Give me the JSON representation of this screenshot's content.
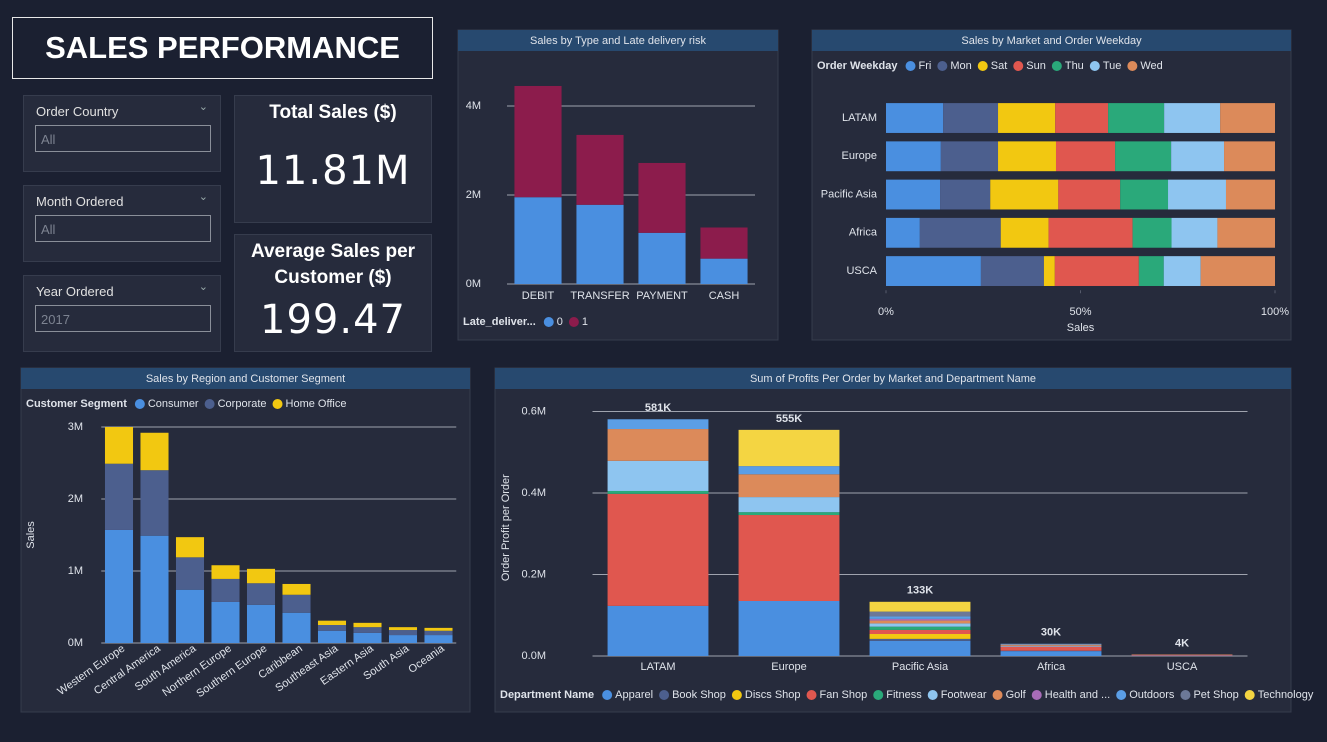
{
  "header": {
    "title": "SALES PERFORMANCE"
  },
  "filters": [
    {
      "label": "Order Country",
      "value": "All"
    },
    {
      "label": "Month Ordered",
      "value": "All"
    },
    {
      "label": "Year Ordered",
      "value": "2017"
    }
  ],
  "cards": [
    {
      "label": "Total Sales ($)",
      "value": "11.81M"
    },
    {
      "label": "Average Sales per Customer ($)",
      "value": "199.47"
    }
  ],
  "chart_data": [
    {
      "type": "bar",
      "stacked": true,
      "title": "Sales by Type and Late delivery risk",
      "categories": [
        "DEBIT",
        "TRANSFER",
        "PAYMENT",
        "CASH"
      ],
      "legend_title": "Late_deliver...",
      "series": [
        {
          "name": "0",
          "color": "#4a8fe0",
          "values": [
            1950000,
            1780000,
            1150000,
            570000
          ]
        },
        {
          "name": "1",
          "color": "#8c1c4c",
          "values": [
            2500000,
            1570000,
            1570000,
            700000
          ]
        }
      ],
      "ylim": [
        0,
        4500000
      ],
      "yticks": [
        {
          "value": 0,
          "label": "0M"
        },
        {
          "value": 2000000,
          "label": "2M"
        },
        {
          "value": 4000000,
          "label": "4M"
        }
      ],
      "grid": true,
      "legend": "bottom"
    },
    {
      "type": "bar",
      "stacked": true,
      "orientation": "horizontal",
      "title": "Sales by Market and Order Weekday",
      "categories": [
        "LATAM",
        "Europe",
        "Pacific Asia",
        "Africa",
        "USCA"
      ],
      "legend_title": "Order Weekday",
      "x_label": "Sales",
      "series": [
        {
          "name": "Fri",
          "color": "#4a8fe0",
          "values": [
            14.7,
            14.1,
            13.9,
            8.7,
            24.4
          ]
        },
        {
          "name": "Mon",
          "color": "#4c5f8e",
          "values": [
            14.1,
            14.7,
            12.9,
            20.8,
            16.2
          ]
        },
        {
          "name": "Sat",
          "color": "#f2c811",
          "values": [
            14.7,
            14.9,
            17.5,
            12.3,
            2.8
          ]
        },
        {
          "name": "Sun",
          "color": "#e0574f",
          "values": [
            13.6,
            15.2,
            15.9,
            21.6,
            21.6
          ]
        },
        {
          "name": "Thu",
          "color": "#2aa97a",
          "values": [
            14.4,
            14.4,
            12.3,
            10.0,
            6.4
          ]
        },
        {
          "name": "Tue",
          "color": "#8ec5f0",
          "values": [
            14.4,
            13.6,
            14.9,
            11.8,
            9.5
          ]
        },
        {
          "name": "Wed",
          "color": "#dc8a5a",
          "values": [
            14.1,
            13.1,
            12.6,
            14.8,
            19.1
          ]
        }
      ],
      "xlim": [
        0,
        100
      ],
      "xticks": [
        {
          "value": 0,
          "label": "0%"
        },
        {
          "value": 50,
          "label": "50%"
        },
        {
          "value": 100,
          "label": "100%"
        }
      ],
      "grid": false,
      "legend": "top"
    },
    {
      "type": "bar",
      "stacked": true,
      "title": "Sales by Region and Customer Segment",
      "categories": [
        "Western Europe",
        "Central America",
        "South America",
        "Northern Europe",
        "Southern Europe",
        "Caribbean",
        "Southeast Asia",
        "Eastern Asia",
        "South Asia",
        "Oceania"
      ],
      "legend_title": "Customer Segment",
      "y_label": "Sales",
      "series": [
        {
          "name": "Consumer",
          "color": "#4a8fe0",
          "values": [
            1570000,
            1490000,
            740000,
            570000,
            530000,
            420000,
            170000,
            140000,
            110000,
            110000
          ]
        },
        {
          "name": "Corporate",
          "color": "#4c5f8e",
          "values": [
            920000,
            910000,
            450000,
            320000,
            300000,
            250000,
            80000,
            80000,
            70000,
            60000
          ]
        },
        {
          "name": "Home Office",
          "color": "#f2c811",
          "values": [
            510000,
            520000,
            280000,
            190000,
            200000,
            150000,
            60000,
            60000,
            40000,
            40000
          ]
        }
      ],
      "ylim": [
        0,
        3000000
      ],
      "yticks": [
        {
          "value": 0,
          "label": "0M"
        },
        {
          "value": 1000000,
          "label": "1M"
        },
        {
          "value": 2000000,
          "label": "2M"
        },
        {
          "value": 3000000,
          "label": "3M"
        }
      ],
      "grid": true,
      "legend": "top"
    },
    {
      "type": "bar",
      "stacked": true,
      "title": "Sum of Profits Per Order by Market and Department Name",
      "categories": [
        "LATAM",
        "Europe",
        "Pacific Asia",
        "Africa",
        "USCA"
      ],
      "legend_title": "Department Name",
      "y_label": "Order Profit per Order",
      "series": [
        {
          "name": "Apparel",
          "color": "#4a8fe0",
          "values": [
            123000,
            135000,
            37000,
            12000,
            1000
          ]
        },
        {
          "name": "Book Shop",
          "color": "#4c5f8e",
          "values": [
            0,
            0,
            5000,
            1000,
            0
          ]
        },
        {
          "name": "Discs Shop",
          "color": "#f2c811",
          "values": [
            0,
            0,
            12000,
            0,
            0
          ]
        },
        {
          "name": "Fan Shop",
          "color": "#e0574f",
          "values": [
            275000,
            211000,
            10000,
            10000,
            2000
          ]
        },
        {
          "name": "Fitness",
          "color": "#2aa97a",
          "values": [
            7000,
            7000,
            8000,
            0,
            0
          ]
        },
        {
          "name": "Footwear",
          "color": "#8ec5f0",
          "values": [
            74000,
            37000,
            8000,
            2000,
            0
          ]
        },
        {
          "name": "Golf",
          "color": "#dc8a5a",
          "values": [
            78000,
            56000,
            7000,
            3000,
            1000
          ]
        },
        {
          "name": "Health and ...",
          "color": "#a86cb8",
          "values": [
            0,
            0,
            4000,
            0,
            0
          ]
        },
        {
          "name": "Outdoors",
          "color": "#5b9ee6",
          "values": [
            24000,
            20000,
            6000,
            2000,
            0
          ]
        },
        {
          "name": "Pet Shop",
          "color": "#6c7898",
          "values": [
            0,
            0,
            12000,
            0,
            0
          ]
        },
        {
          "name": "Technology",
          "color": "#f4d542",
          "values": [
            0,
            89000,
            24000,
            0,
            0
          ]
        }
      ],
      "totals": [
        581000,
        555000,
        133000,
        30000,
        4000
      ],
      "total_labels": [
        "581K",
        "555K",
        "133K",
        "30K",
        "4K"
      ],
      "ylim": [
        0,
        630000
      ],
      "yticks": [
        {
          "value": 0,
          "label": "0.0M"
        },
        {
          "value": 200000,
          "label": "0.2M"
        },
        {
          "value": 400000,
          "label": "0.4M"
        },
        {
          "value": 600000,
          "label": "0.6M"
        }
      ],
      "grid": true,
      "legend": "bottom"
    }
  ]
}
